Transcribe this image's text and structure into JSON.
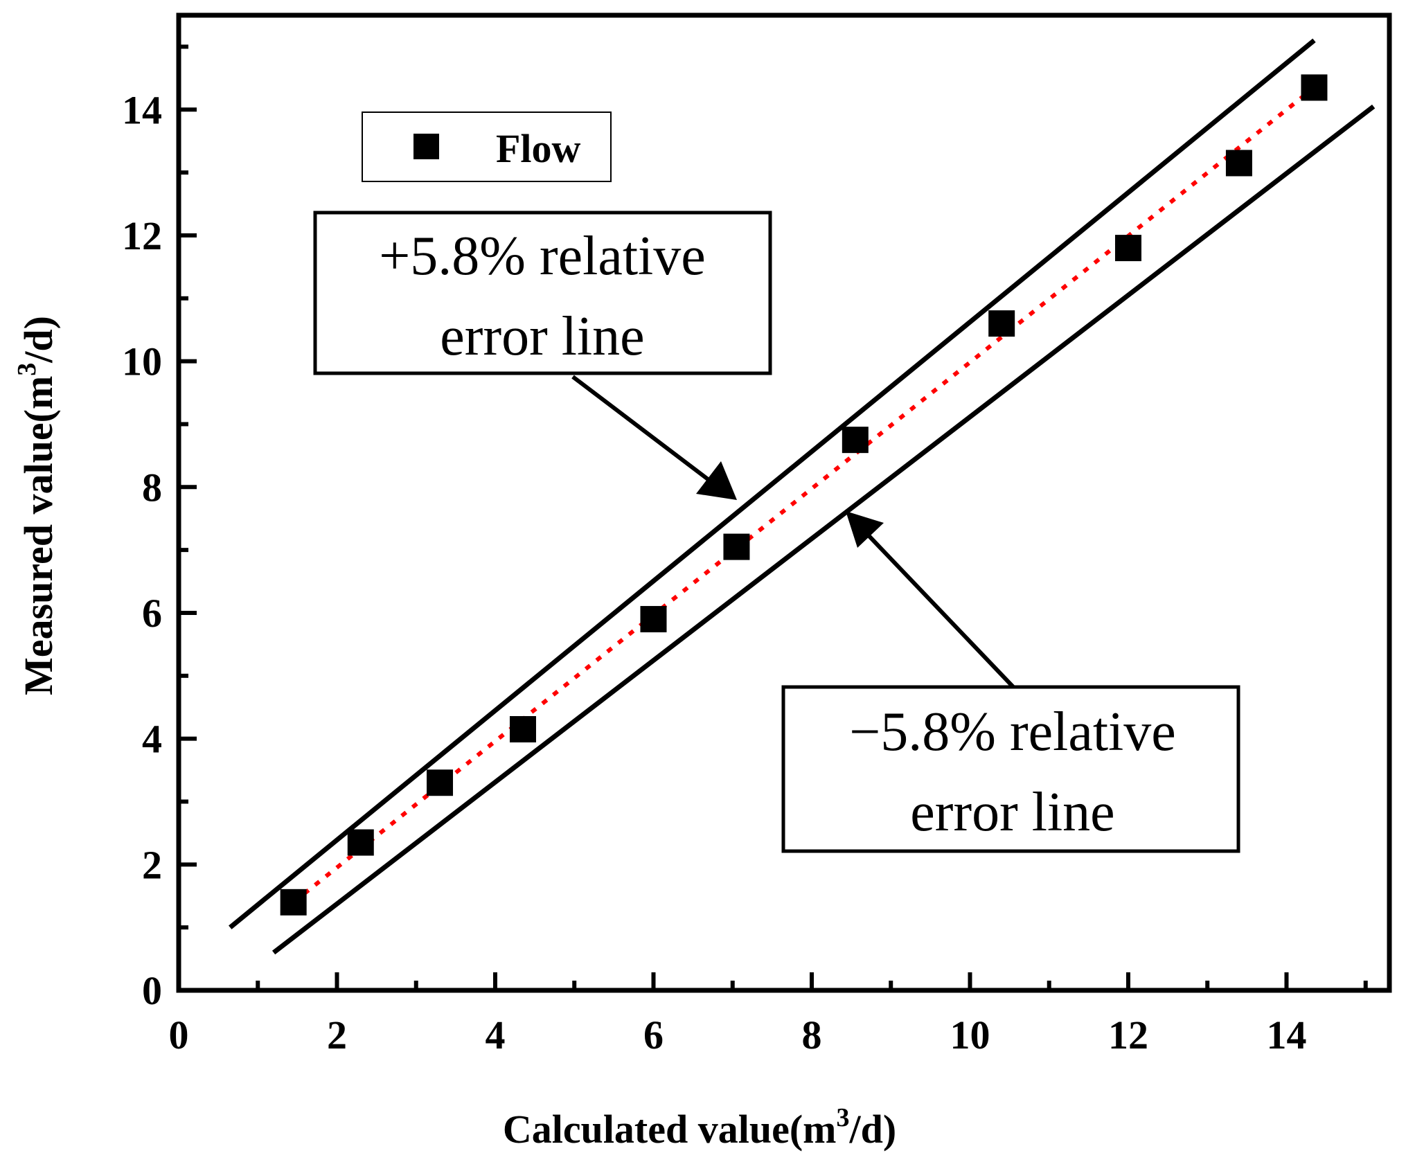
{
  "chart_data": {
    "type": "scatter",
    "xlabel": "Calculated value(m",
    "xlabel_sup": "3",
    "xlabel_end": "/d)",
    "ylabel": "Measured value(m",
    "ylabel_sup": "3",
    "ylabel_end": "/d)",
    "xlim": [
      0,
      15.3
    ],
    "ylim": [
      0,
      15.5
    ],
    "xticks": [
      "0",
      "2",
      "4",
      "6",
      "8",
      "10",
      "12",
      "14"
    ],
    "yticks": [
      "0",
      "2",
      "4",
      "6",
      "8",
      "10",
      "12",
      "14"
    ],
    "grid": false,
    "legend_position": "top-left",
    "series": [
      {
        "name": "Flow",
        "marker": "square",
        "color": "#000000",
        "x": [
          1.45,
          2.3,
          3.3,
          4.35,
          6.0,
          7.05,
          8.55,
          10.4,
          12.0,
          13.4,
          14.35
        ],
        "y": [
          1.4,
          2.35,
          3.3,
          4.15,
          5.9,
          7.05,
          8.75,
          10.6,
          11.8,
          13.15,
          14.35
        ]
      }
    ],
    "fit_line": {
      "color": "#ff0000",
      "style": "dotted",
      "x": [
        1.45,
        14.35
      ],
      "y": [
        1.4,
        14.35
      ]
    },
    "error_lines": [
      {
        "label": "+5.8% relative error line",
        "x": [
          0.65,
          14.35
        ],
        "y": [
          1.0,
          15.1
        ]
      },
      {
        "label": "−5.8% relative error line",
        "x": [
          1.2,
          15.1
        ],
        "y": [
          0.6,
          14.05
        ]
      }
    ],
    "annotations": [
      {
        "lines": [
          "+5.8% relative",
          "error line"
        ],
        "target": "upper-error-line"
      },
      {
        "lines": [
          "−5.8% relative",
          "error line"
        ],
        "target": "lower-error-line"
      }
    ]
  }
}
